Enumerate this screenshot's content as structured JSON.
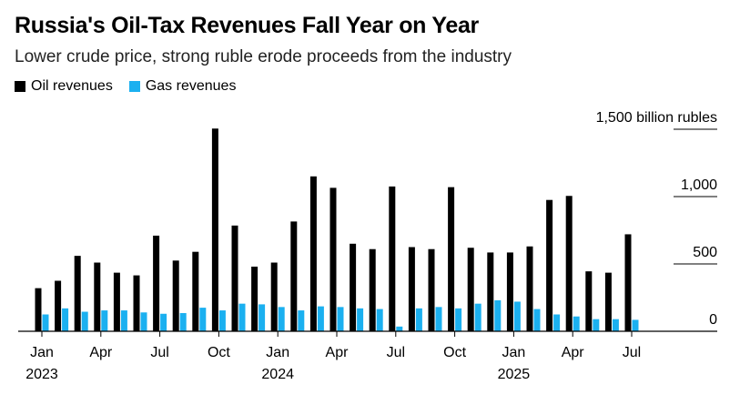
{
  "title": "Russia's Oil-Tax Revenues Fall Year on Year",
  "subtitle": "Lower crude price, strong ruble erode proceeds from the industry",
  "colors": {
    "oil": "#000000",
    "gas": "#1bb0f0",
    "grid": "#000000"
  },
  "chart_data": {
    "type": "bar",
    "title": "Russia's Oil-Tax Revenues Fall Year on Year",
    "subtitle": "Lower crude price, strong ruble erode proceeds from the industry",
    "ylabel": "billion rubles",
    "ylim": [
      0,
      1500
    ],
    "legend_position": "top-left",
    "y_axis_position": "right",
    "y_ticks": [
      {
        "value": 0,
        "label": "0"
      },
      {
        "value": 500,
        "label": "500"
      },
      {
        "value": 1000,
        "label": "1,000"
      },
      {
        "value": 1500,
        "label": "1,500 billion rubles"
      }
    ],
    "x_ticks": [
      {
        "index": 0,
        "label": "Jan",
        "year": "2023"
      },
      {
        "index": 3,
        "label": "Apr",
        "year": ""
      },
      {
        "index": 6,
        "label": "Jul",
        "year": ""
      },
      {
        "index": 9,
        "label": "Oct",
        "year": ""
      },
      {
        "index": 12,
        "label": "Jan",
        "year": "2024"
      },
      {
        "index": 15,
        "label": "Apr",
        "year": ""
      },
      {
        "index": 18,
        "label": "Jul",
        "year": ""
      },
      {
        "index": 21,
        "label": "Oct",
        "year": ""
      },
      {
        "index": 24,
        "label": "Jan",
        "year": "2025"
      },
      {
        "index": 27,
        "label": "Apr",
        "year": ""
      },
      {
        "index": 30,
        "label": "Jul",
        "year": ""
      }
    ],
    "categories": [
      "2023-01",
      "2023-02",
      "2023-03",
      "2023-04",
      "2023-05",
      "2023-06",
      "2023-07",
      "2023-08",
      "2023-09",
      "2023-10",
      "2023-11",
      "2023-12",
      "2024-01",
      "2024-02",
      "2024-03",
      "2024-04",
      "2024-05",
      "2024-06",
      "2024-07",
      "2024-08",
      "2024-09",
      "2024-10",
      "2024-11",
      "2024-12",
      "2025-01",
      "2025-02",
      "2025-03",
      "2025-04",
      "2025-05",
      "2025-06",
      "2025-07"
    ],
    "series": [
      {
        "name": "Oil revenues",
        "values": [
          320,
          375,
          560,
          510,
          435,
          415,
          710,
          525,
          590,
          1505,
          785,
          480,
          510,
          815,
          1150,
          1065,
          650,
          610,
          1075,
          625,
          610,
          1070,
          620,
          585,
          585,
          630,
          975,
          1005,
          445,
          435,
          720
        ]
      },
      {
        "name": "Gas revenues",
        "values": [
          125,
          170,
          145,
          155,
          155,
          140,
          130,
          135,
          175,
          155,
          205,
          200,
          180,
          155,
          185,
          180,
          170,
          165,
          35,
          170,
          180,
          170,
          205,
          230,
          220,
          165,
          125,
          110,
          90,
          90,
          85
        ]
      }
    ]
  }
}
